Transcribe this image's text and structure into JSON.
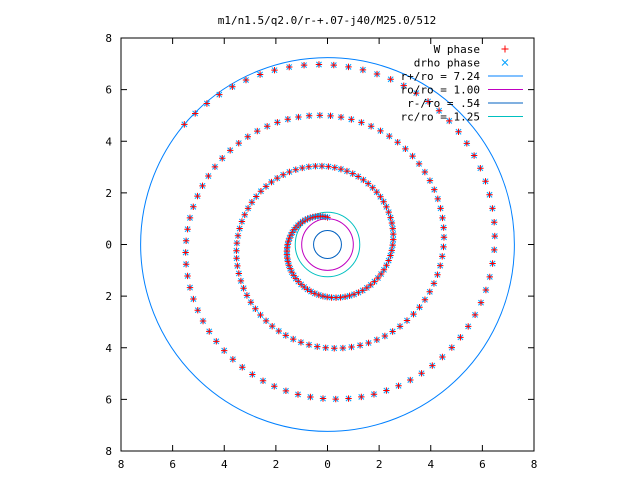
{
  "chart_data": {
    "type": "scatter",
    "title": "m1/n1.5/q2.0/r-+.07-j40/M25.0/512",
    "xlabel": "",
    "ylabel": "",
    "xlim": [
      -8,
      8
    ],
    "ylim": [
      -8,
      8
    ],
    "grid": false,
    "legend_position": "top-right",
    "x_ticks": [
      -8,
      -6,
      -4,
      -2,
      0,
      2,
      4,
      6,
      8
    ],
    "y_ticks": [
      -8,
      -6,
      -4,
      -2,
      0,
      2,
      4,
      6,
      8
    ],
    "x_tick_labels": [
      "8",
      "6",
      "4",
      "2",
      "0",
      "2",
      "4",
      "6",
      "8"
    ],
    "y_tick_labels": [
      "8",
      "6",
      "4",
      "2",
      "0",
      "2",
      "4",
      "6",
      "8"
    ],
    "spiral": {
      "theta_start_deg": 90,
      "theta_end_deg": 1220,
      "r_start": 1.05,
      "r_end": 7.24,
      "point_count": 240
    },
    "series": [
      {
        "name": "W phase",
        "marker": "+",
        "color": "#ff0000"
      },
      {
        "name": "drho phase",
        "marker": "x",
        "color": "#00a0ff"
      }
    ],
    "circles": [
      {
        "name": "r+/ro = 7.24",
        "radius": 7.24,
        "color": "#0080ff"
      },
      {
        "name": "ro/ro = 1.00",
        "radius": 1.0,
        "color": "#c000c0"
      },
      {
        "name": "r-/ro = .54",
        "radius": 0.54,
        "color": "#0060c0"
      },
      {
        "name": "rc/ro = 1.25",
        "radius": 1.25,
        "color": "#00c0c0"
      }
    ]
  }
}
